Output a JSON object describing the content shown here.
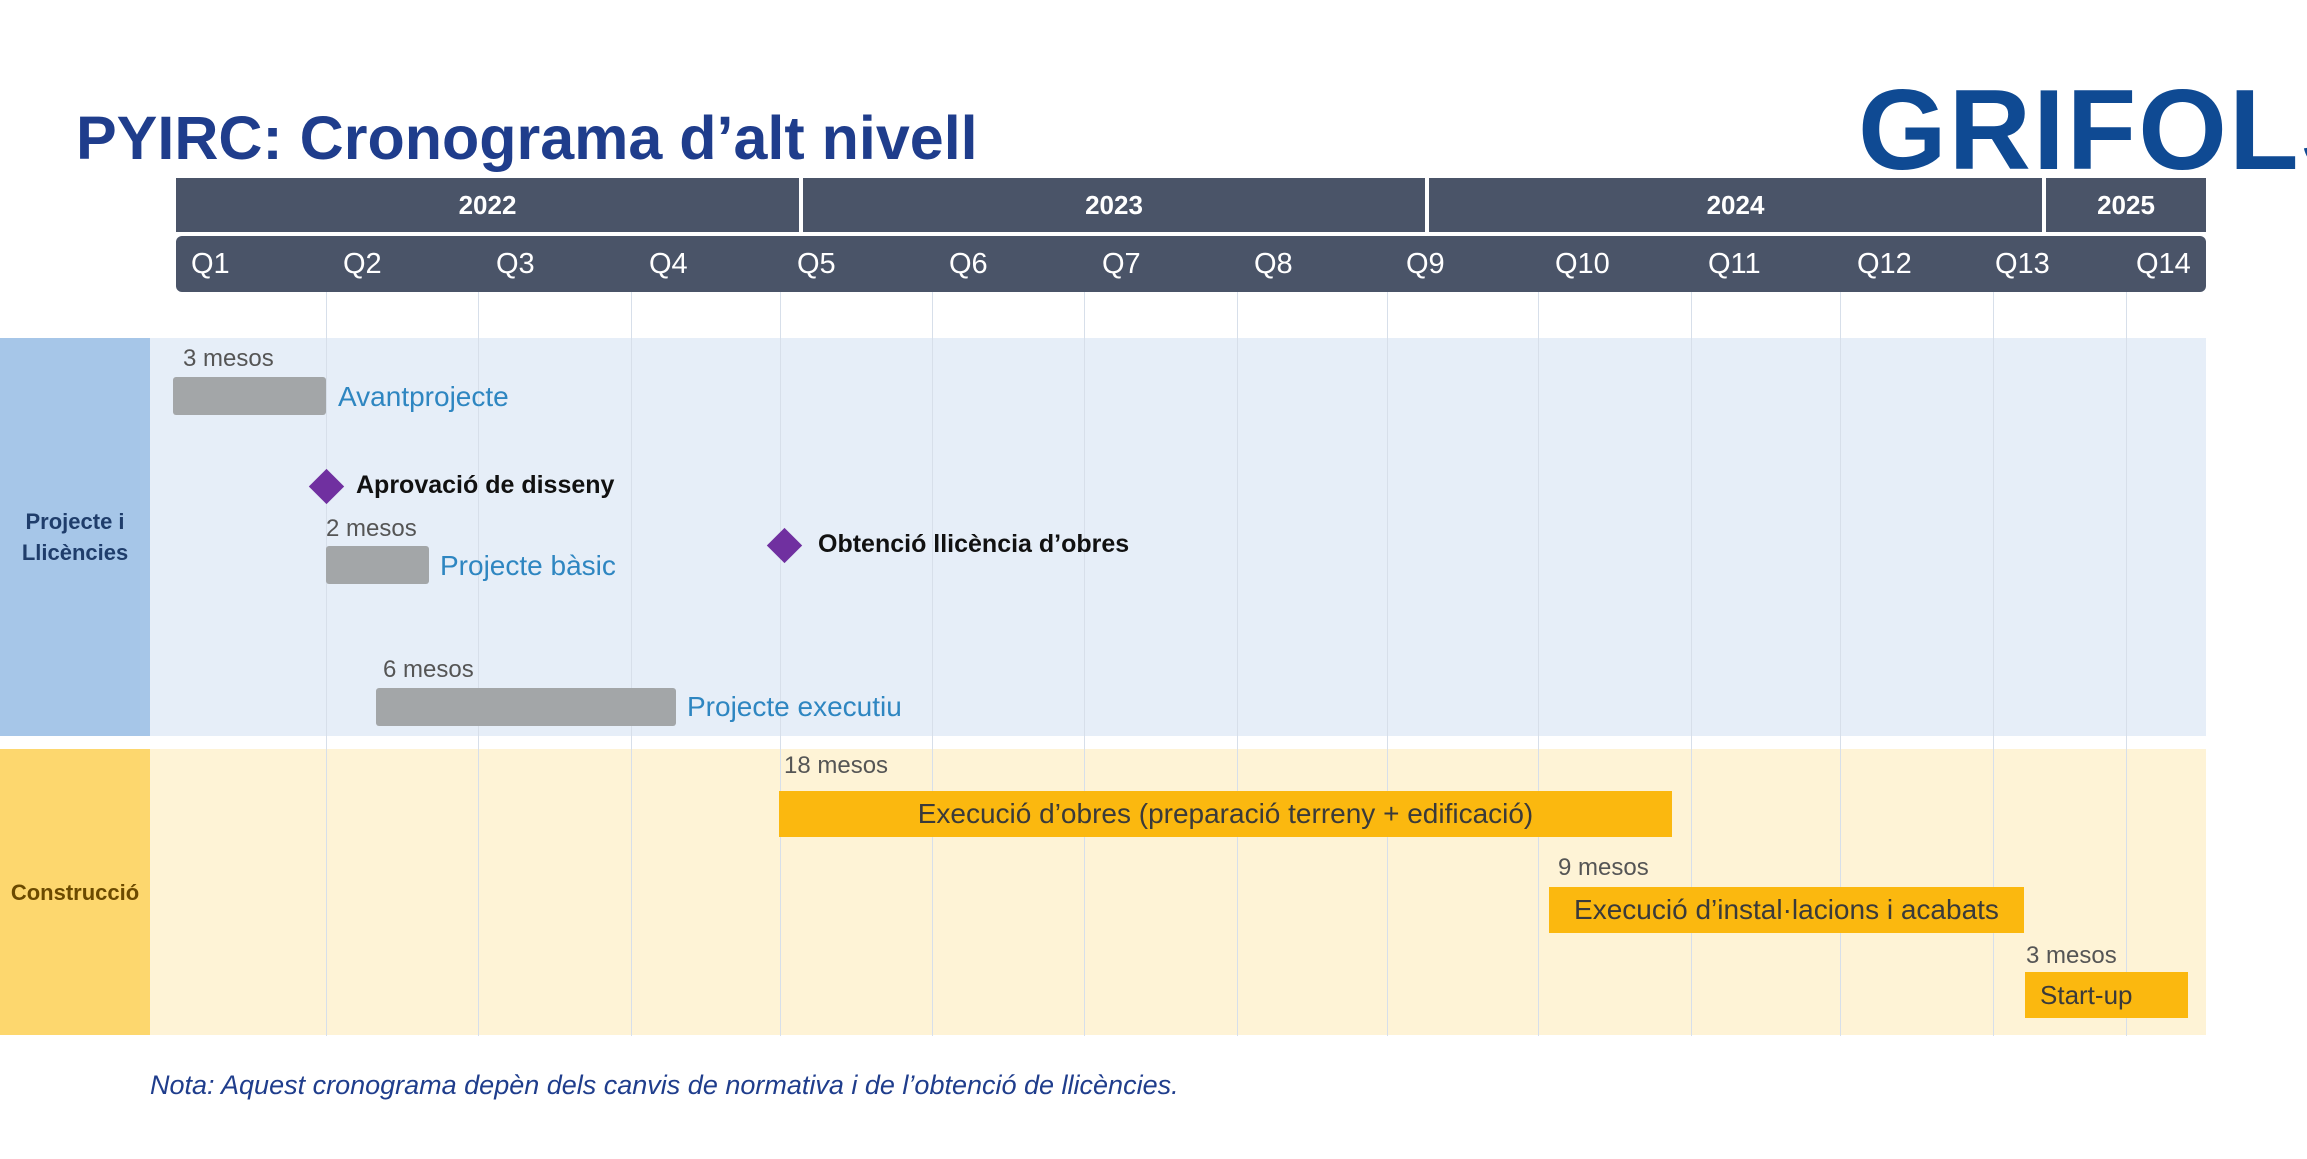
{
  "title": "PYIRC: Cronograma d’alt nivell",
  "logo": "GRIFOLS",
  "years": [
    "2022",
    "2023",
    "2024",
    "2025"
  ],
  "quarters": [
    "Q1",
    "Q2",
    "Q3",
    "Q4",
    "Q5",
    "Q6",
    "Q7",
    "Q8",
    "Q9",
    "Q10",
    "Q11",
    "Q12",
    "Q13",
    "Q14"
  ],
  "sections": {
    "planning": "Projecte i Llicències",
    "construction": "Construcció"
  },
  "tasks": [
    {
      "duration": "3 mesos",
      "label": "Avantprojecte"
    },
    {
      "duration": "2 mesos",
      "label": "Projecte bàsic"
    },
    {
      "duration": "6 mesos",
      "label": "Projecte executiu"
    },
    {
      "duration": "18 mesos",
      "label": "Execució d’obres (preparació terreny + edificació)"
    },
    {
      "duration": "9 mesos",
      "label": "Execució d’instal·lacions i acabats"
    },
    {
      "duration": "3 mesos",
      "label": "Start-up"
    }
  ],
  "milestones": [
    {
      "label": "Aprovació de disseny"
    },
    {
      "label": "Obtenció llicència d’obres"
    }
  ],
  "note": "Nota: Aquest cronograma depèn dels canvis de normativa i de l’obtenció de llicències.",
  "colors": {
    "header": "#4a5468",
    "title": "#1f3d8c",
    "logo": "#0f4a93",
    "planning_band": "#e6eef8",
    "planning_side": "#a6c6e8",
    "construction_band": "#fef3d6",
    "construction_side": "#fdd76e",
    "design_bar": "#a3a6a8",
    "construction_bar": "#fbb80f",
    "milestone": "#7030a0",
    "design_label": "#2e86c1"
  }
}
